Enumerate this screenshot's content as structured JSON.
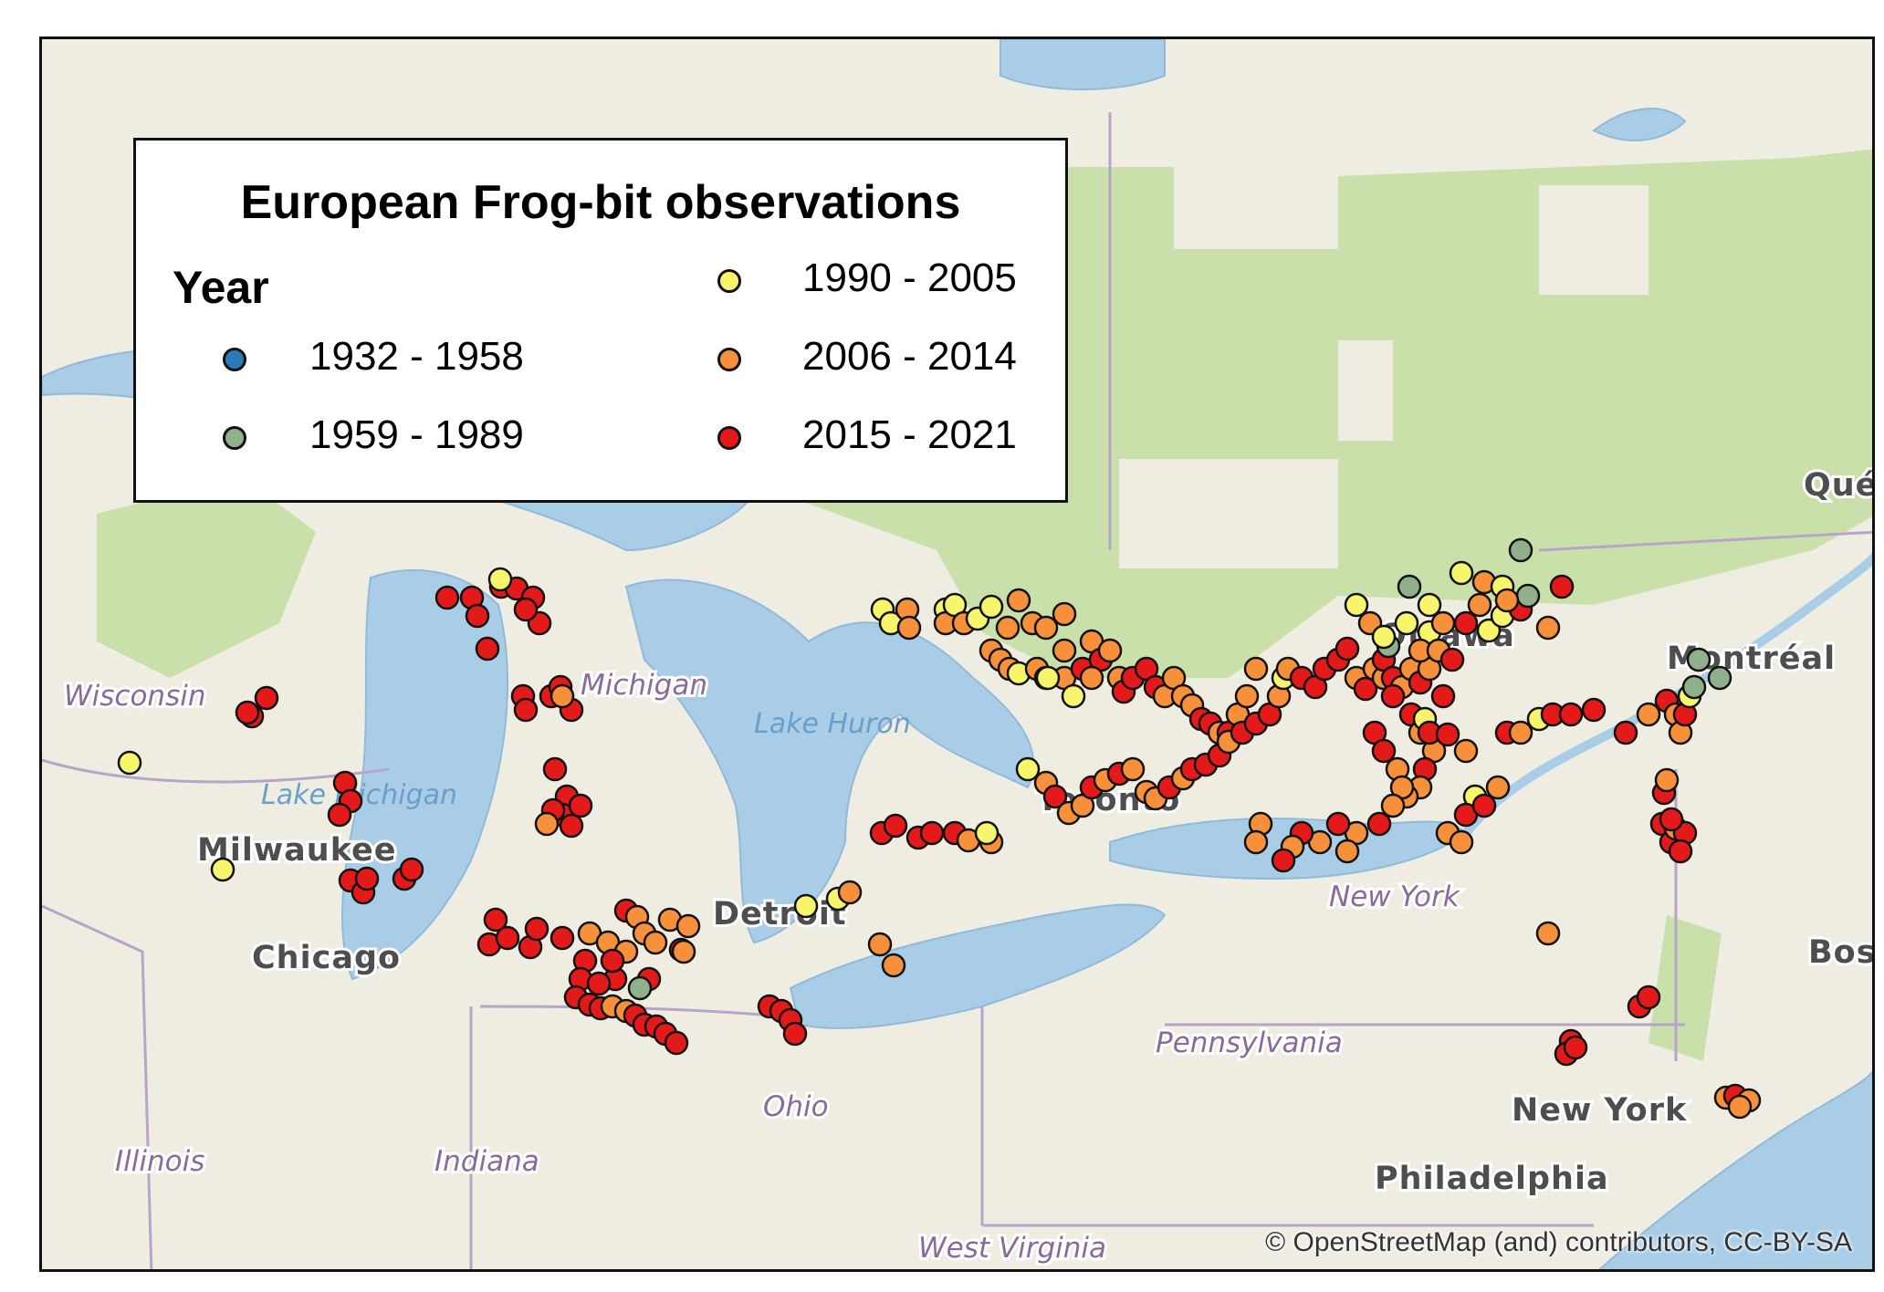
{
  "legend": {
    "title": "European Frog-bit observations",
    "heading": "Year",
    "items": [
      {
        "label": "1932 - 1958",
        "color": "#2b7bb9"
      },
      {
        "label": "1959 - 1989",
        "color": "#8fb08a"
      },
      {
        "label": "1990 - 2005",
        "color": "#f7f56b"
      },
      {
        "label": "2006 - 2014",
        "color": "#f7903a"
      },
      {
        "label": "2015 - 2021",
        "color": "#e41a1a"
      }
    ]
  },
  "labels": {
    "wisconsin": "Wisconsin",
    "michigan": "Michigan",
    "lake_michigan": "Lake Michigan",
    "lake_huron": "Lake Huron",
    "milwaukee": "Milwaukee",
    "chicago": "Chicago",
    "detroit": "Detroit",
    "toronto": "Toronto",
    "ottawa": "Ottawa",
    "montreal": "Montréal",
    "quebec": "Qué",
    "new_york_state": "New York",
    "new_york_city": "New York",
    "boston": "Bos",
    "pennsylvania": "Pennsylvania",
    "ohio": "Ohio",
    "indiana": "Indiana",
    "illinois": "Illinois",
    "philadelphia": "Philadelphia",
    "west_virginia": "West Virginia"
  },
  "attribution": "© OpenStreetMap (and) contributors, CC-BY-SA",
  "colors": {
    "land": "#efece2",
    "forest": "#c6dfa8",
    "water": "#a9cde7"
  }
}
